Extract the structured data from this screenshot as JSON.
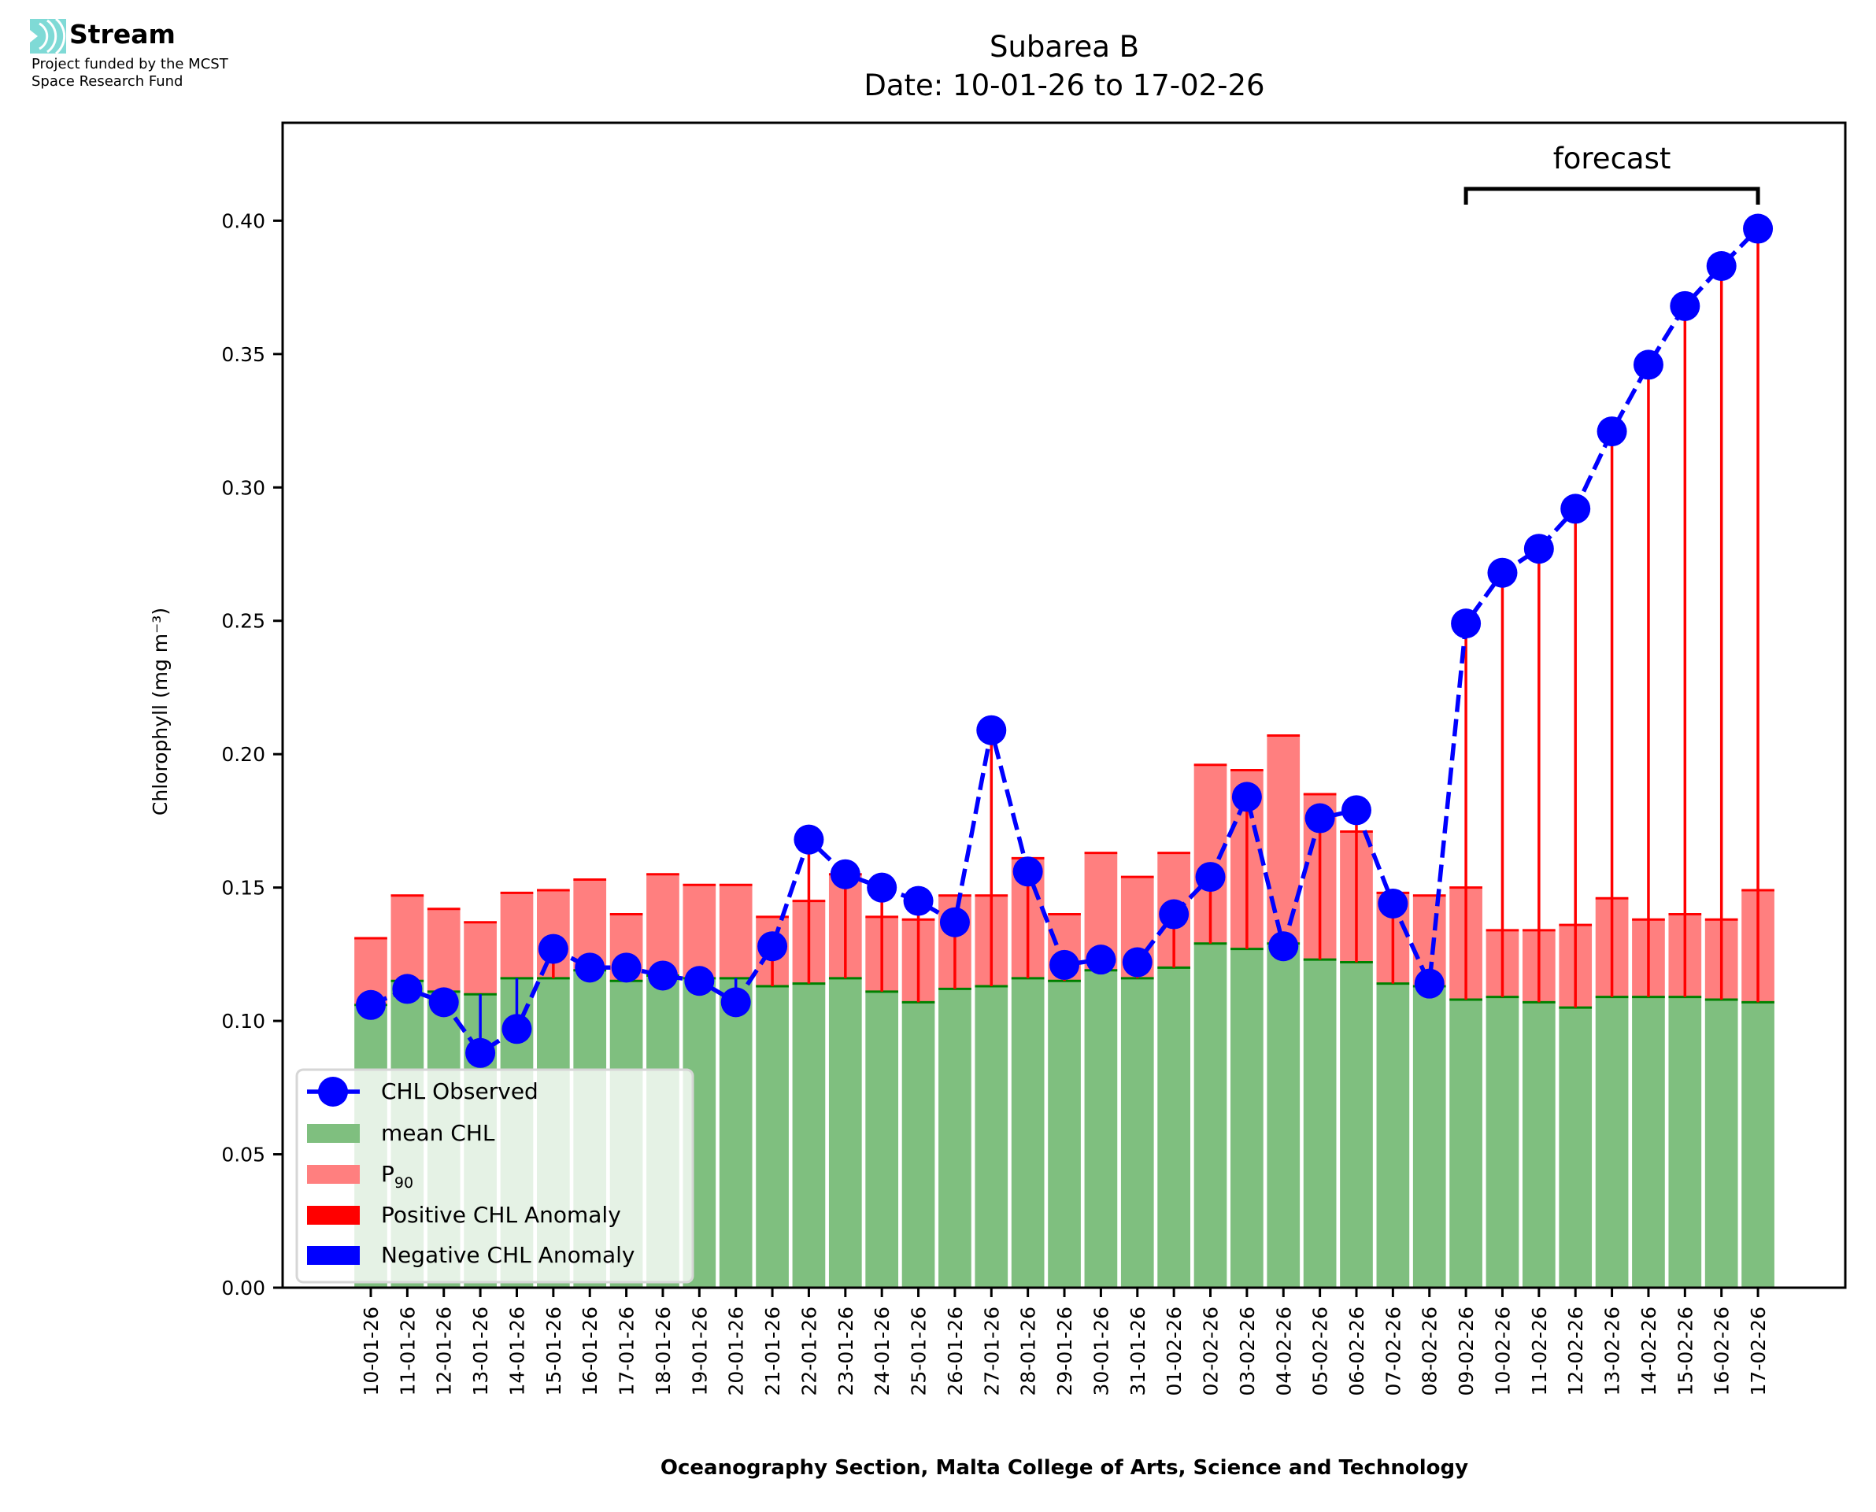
{
  "logo": {
    "name": "Stream",
    "line1": "Project funded by the MCST",
    "line2": "Space Research Fund",
    "color": "#7fdad6"
  },
  "chart_data": {
    "type": "bar",
    "title": "Subarea B",
    "subtitle": "Date: 10-01-26 to 17-02-26",
    "xlabel": "Oceanography Section, Malta College of Arts, Science and Technology",
    "ylabel": "Chlorophyll (mg m⁻³)",
    "ylim": [
      0,
      0.4367
    ],
    "yticks": [
      "0.00",
      "0.05",
      "0.10",
      "0.15",
      "0.20",
      "0.25",
      "0.30",
      "0.35",
      "0.40"
    ],
    "grid": false,
    "legend_position": "lower-left",
    "categories": [
      "10-01-26",
      "11-01-26",
      "12-01-26",
      "13-01-26",
      "14-01-26",
      "15-01-26",
      "16-01-26",
      "17-01-26",
      "18-01-26",
      "19-01-26",
      "20-01-26",
      "21-01-26",
      "22-01-26",
      "23-01-26",
      "24-01-26",
      "25-01-26",
      "26-01-26",
      "27-01-26",
      "28-01-26",
      "29-01-26",
      "30-01-26",
      "31-01-26",
      "01-02-26",
      "02-02-26",
      "03-02-26",
      "04-02-26",
      "05-02-26",
      "06-02-26",
      "07-02-26",
      "08-02-26",
      "09-02-26",
      "10-02-26",
      "11-02-26",
      "12-02-26",
      "13-02-26",
      "14-02-26",
      "15-02-26",
      "16-02-26",
      "17-02-26"
    ],
    "series": [
      {
        "name": "CHL Observed",
        "kind": "line",
        "style": "dashed",
        "marker": "circle",
        "color": "#0000ff",
        "values": [
          0.106,
          0.112,
          0.107,
          0.088,
          0.097,
          0.127,
          0.12,
          0.12,
          0.117,
          0.115,
          0.107,
          0.128,
          0.168,
          0.155,
          0.15,
          0.145,
          0.137,
          0.209,
          0.156,
          0.121,
          0.123,
          0.122,
          0.14,
          0.154,
          0.184,
          0.128,
          0.176,
          0.179,
          0.144,
          0.114,
          0.249,
          0.268,
          0.277,
          0.292,
          0.321,
          0.346,
          0.368,
          0.383,
          0.397
        ]
      },
      {
        "name": "mean CHL",
        "kind": "bar",
        "color": "#7fbf7f",
        "edge": "#008000",
        "values": [
          0.106,
          0.115,
          0.111,
          0.11,
          0.116,
          0.116,
          0.119,
          0.115,
          0.117,
          0.116,
          0.116,
          0.113,
          0.114,
          0.116,
          0.111,
          0.107,
          0.112,
          0.113,
          0.116,
          0.115,
          0.119,
          0.116,
          0.12,
          0.129,
          0.127,
          0.129,
          0.123,
          0.122,
          0.114,
          0.113,
          0.108,
          0.109,
          0.107,
          0.105,
          0.109,
          0.109,
          0.109,
          0.108,
          0.107
        ]
      },
      {
        "name": "P₉₀",
        "kind": "bar",
        "color": "#ff7f7f",
        "edge": "#ff0000",
        "values": [
          0.131,
          0.147,
          0.142,
          0.137,
          0.148,
          0.149,
          0.153,
          0.14,
          0.155,
          0.151,
          0.151,
          0.139,
          0.145,
          0.155,
          0.139,
          0.138,
          0.147,
          0.147,
          0.161,
          0.14,
          0.163,
          0.154,
          0.163,
          0.196,
          0.194,
          0.207,
          0.185,
          0.171,
          0.148,
          0.147,
          0.15,
          0.134,
          0.134,
          0.136,
          0.146,
          0.138,
          0.14,
          0.138,
          0.149
        ]
      }
    ],
    "anomaly": {
      "positive_label": "Positive CHL Anomaly",
      "negative_label": "Negative CHL Anomaly",
      "positive_color": "#ff0000",
      "negative_color": "#0000ff"
    },
    "legend": [
      {
        "label": "CHL Observed",
        "swatch": "line-marker",
        "color": "#0000ff"
      },
      {
        "label": "mean CHL",
        "swatch": "patch",
        "color": "#7fbf7f"
      },
      {
        "label": "P",
        "sub": "90",
        "swatch": "patch",
        "color": "#ff7f7f"
      },
      {
        "label": "Positive CHL Anomaly",
        "swatch": "patch",
        "color": "#ff0000"
      },
      {
        "label": "Negative CHL Anomaly",
        "swatch": "patch",
        "color": "#0000ff"
      }
    ],
    "annotation": {
      "text": "forecast",
      "from_category": "09-02-26",
      "to_category": "17-02-26"
    }
  }
}
